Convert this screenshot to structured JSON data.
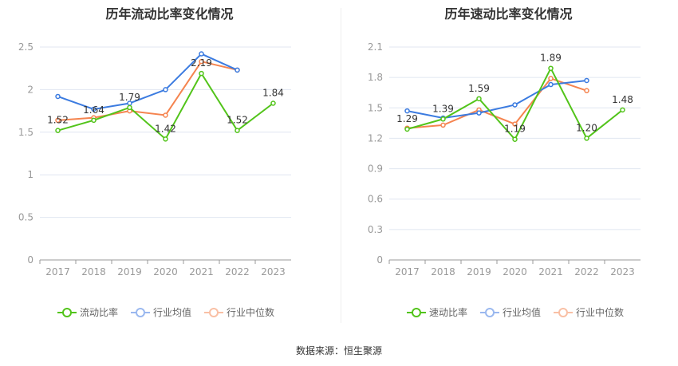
{
  "source": "数据来源：恒生聚源",
  "chart_data": [
    {
      "type": "line",
      "title": "历年流动比率变化情况",
      "categories": [
        "2017",
        "2018",
        "2019",
        "2020",
        "2021",
        "2022",
        "2023"
      ],
      "ylim": [
        0,
        2.5
      ],
      "yticks": [
        "0",
        "0.5",
        "1",
        "1.5",
        "2",
        "2.5"
      ],
      "grid": true,
      "legend": "bottom",
      "series": [
        {
          "name": "流动比率",
          "color": "#52c41a",
          "values": [
            1.52,
            1.64,
            1.79,
            1.42,
            2.19,
            1.52,
            1.84
          ],
          "labels": [
            "1.52",
            "1.64",
            "1.79",
            "1.42",
            "2.19",
            "1.52",
            "1.84"
          ]
        },
        {
          "name": "行业均值",
          "color": "#3b7be0",
          "values": [
            1.92,
            1.77,
            1.84,
            2.0,
            2.42,
            2.23,
            null
          ]
        },
        {
          "name": "行业中位数",
          "color": "#f5844f",
          "values": [
            1.64,
            1.67,
            1.75,
            1.7,
            2.33,
            2.23,
            null
          ]
        }
      ]
    },
    {
      "type": "line",
      "title": "历年速动比率变化情况",
      "categories": [
        "2017",
        "2018",
        "2019",
        "2020",
        "2021",
        "2022",
        "2023"
      ],
      "ylim": [
        0,
        2.1
      ],
      "yticks": [
        "0",
        "0.3",
        "0.6",
        "0.9",
        "1.2",
        "1.5",
        "1.8",
        "2.1"
      ],
      "grid": true,
      "legend": "bottom",
      "series": [
        {
          "name": "速动比率",
          "color": "#52c41a",
          "values": [
            1.29,
            1.39,
            1.59,
            1.19,
            1.89,
            1.2,
            1.48
          ],
          "labels": [
            "1.29",
            "1.39",
            "1.59",
            "1.19",
            "1.89",
            "1.20",
            "1.48"
          ]
        },
        {
          "name": "行业均值",
          "color": "#3b7be0",
          "values": [
            1.47,
            1.4,
            1.45,
            1.53,
            1.73,
            1.77,
            null
          ]
        },
        {
          "name": "行业中位数",
          "color": "#f5844f",
          "values": [
            1.3,
            1.33,
            1.48,
            1.34,
            1.79,
            1.67,
            null
          ]
        }
      ]
    }
  ]
}
